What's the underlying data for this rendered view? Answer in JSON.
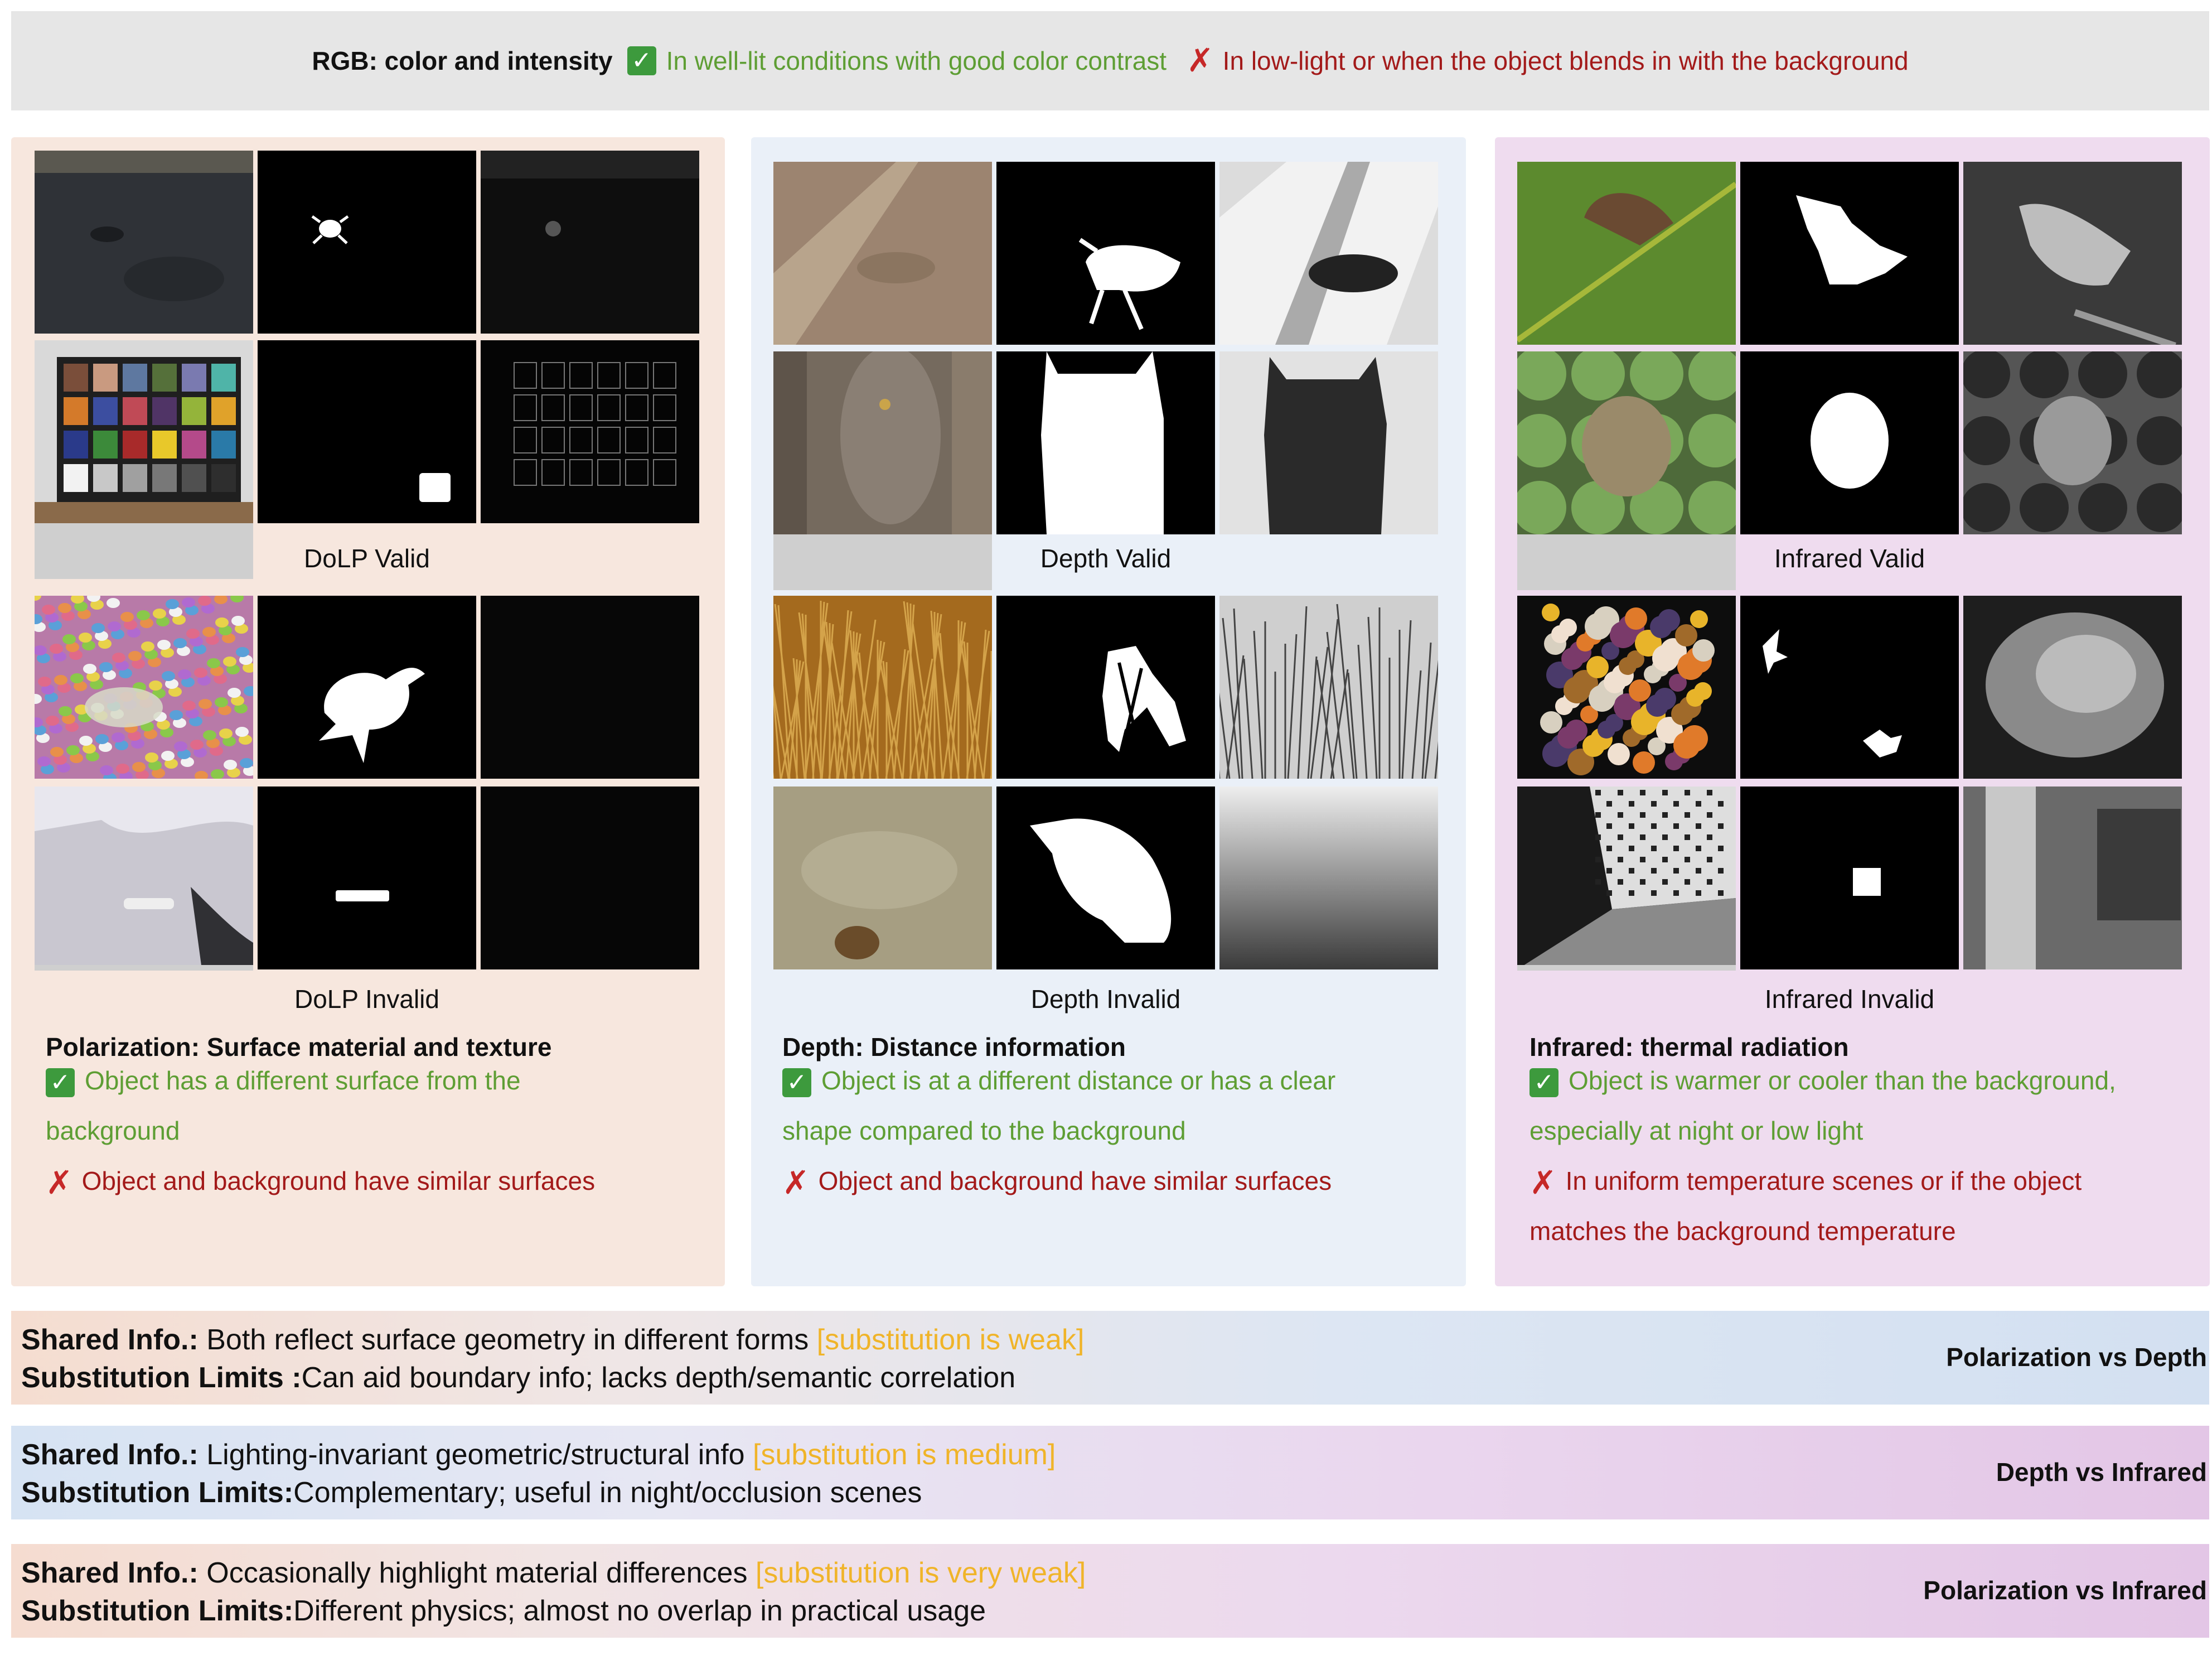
{
  "rgb": {
    "label": "RGB: color and intensity",
    "good": "In well-lit conditions with good color contrast",
    "bad": "In low-light or when the object blends in with the background"
  },
  "panels": {
    "polarization": {
      "valid_caption": "DoLP Valid",
      "invalid_caption": "DoLP Invalid",
      "title": "Polarization: Surface material and texture",
      "good_line1": "Object has a different surface from the",
      "good_line2": "background",
      "bad_line1": "Object and background have similar surfaces",
      "bad_line2": ""
    },
    "depth": {
      "valid_caption": "Depth Valid",
      "invalid_caption": "Depth Invalid",
      "title": "Depth: Distance information",
      "good_line1": "Object is at a different distance or has a clear",
      "good_line2": "shape compared to the background",
      "bad_line1": "Object and background have similar surfaces",
      "bad_line2": ""
    },
    "infrared": {
      "valid_caption": "Infrared Valid",
      "invalid_caption": "Infrared Invalid",
      "title": "Infrared: thermal radiation",
      "good_line1": "Object is warmer or cooler than the background,",
      "good_line2": "especially at night or low light",
      "bad_line1": "In uniform temperature scenes or if the object",
      "bad_line2": "matches the background temperature"
    }
  },
  "comparisons": [
    {
      "shared_label": "Shared Info.:",
      "shared_text": " Both reflect surface geometry in different forms ",
      "strength": "[substitution is weak]",
      "limits_label": "Substitution Limits :",
      "limits_text": "Can aid boundary info; lacks depth/semantic correlation",
      "pair": "Polarization vs Depth"
    },
    {
      "shared_label": "Shared Info.:",
      "shared_text": " Lighting-invariant geometric/structural info ",
      "strength": "[substitution is medium]",
      "limits_label": "Substitution Limits:",
      "limits_text": "Complementary; useful in night/occlusion scenes",
      "pair": "Depth vs Infrared"
    },
    {
      "shared_label": "Shared Info.:",
      "shared_text": " Occasionally highlight material differences ",
      "strength": "[substitution is very weak]",
      "limits_label": "Substitution Limits:",
      "limits_text": "Different physics; almost no overlap in practical usage",
      "pair": "Polarization vs Infrared"
    }
  ],
  "icons": {
    "check": "check-mark-icon",
    "cross": "cross-mark-icon"
  },
  "colors": {
    "good": "#5e9e34",
    "bad": "#a31a1a",
    "strength": "#f0b429"
  }
}
